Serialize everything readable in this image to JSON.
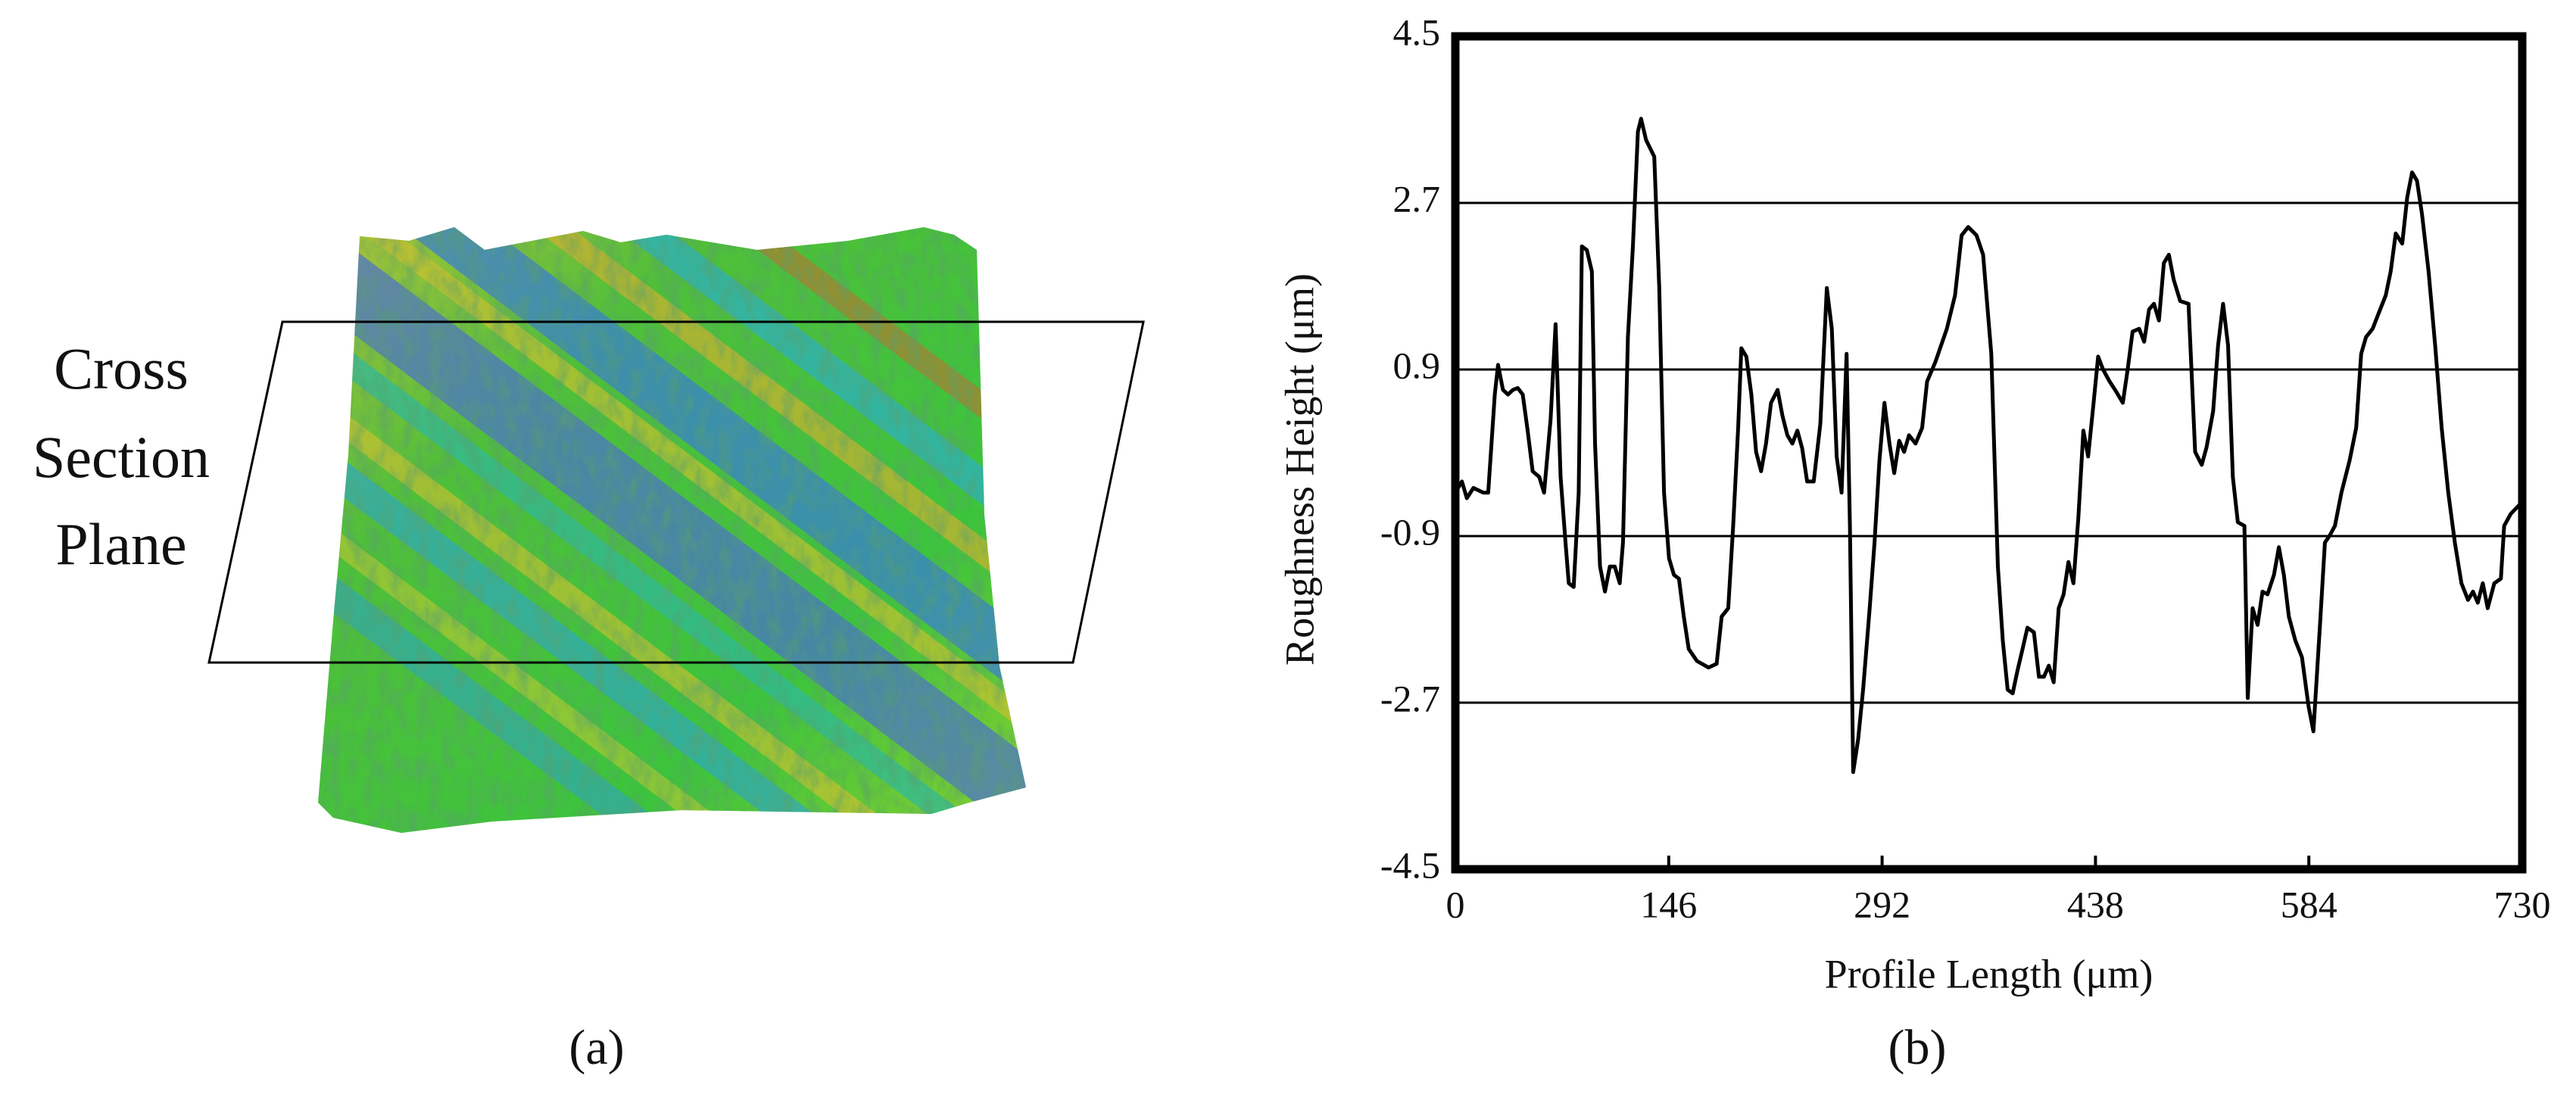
{
  "panel_a": {
    "plane_label": [
      "Cross",
      "Section",
      "Plane"
    ],
    "caption": "(a)"
  },
  "chart_data": {
    "type": "line",
    "caption": "(b)",
    "xlabel": "Profile Length (μm)",
    "ylabel": "Roughness Height (μm)",
    "xlim": [
      0,
      730
    ],
    "ylim": [
      -4.5,
      4.5
    ],
    "xticks": [
      0,
      146,
      292,
      438,
      584,
      730
    ],
    "yticks": [
      -4.5,
      -2.7,
      -0.9,
      0.9,
      2.7,
      4.5
    ],
    "grid": true,
    "color": "#000000",
    "x": [
      0,
      4.5,
      7.9,
      12.4,
      19.1,
      22.5,
      27.0,
      29.2,
      32.6,
      36.0,
      39.4,
      42.7,
      46.1,
      49.5,
      52.9,
      57.4,
      60.7,
      65.2,
      68.6,
      72.0,
      75.4,
      77.6,
      81.0,
      84.4,
      86.6,
      90.0,
      93.4,
      95.6,
      99.0,
      102.4,
      105.7,
      109.1,
      112.5,
      114.7,
      118.1,
      121.5,
      124.9,
      127.1,
      130.5,
      136.1,
      139.5,
      142.8,
      146.2,
      149.6,
      153.0,
      156.3,
      159.7,
      165.3,
      173.2,
      178.8,
      182.2,
      186.7,
      190.1,
      193.5,
      195.7,
      199.1,
      202.5,
      205.8,
      209.2,
      212.6,
      216.0,
      220.5,
      223.8,
      227.2,
      230.6,
      234.0,
      237.3,
      240.7,
      245.2,
      249.7,
      254.2,
      257.6,
      260.9,
      264.3,
      267.7,
      270.0,
      272.2,
      275.6,
      279.0,
      283.5,
      286.8,
      290.2,
      293.6,
      297.0,
      300.3,
      303.7,
      307.1,
      310.4,
      314.9,
      319.4,
      322.8,
      328.4,
      336.3,
      341.9,
      346.4,
      350.9,
      356.6,
      361.1,
      366.7,
      371.2,
      374.6,
      377.9,
      381.3,
      384.7,
      388.1,
      391.4,
      395.9,
      399.3,
      402.7,
      406.1,
      409.4,
      412.8,
      416.2,
      419.5,
      422.9,
      426.3,
      429.7,
      433.0,
      436.4,
      439.8,
      443.2,
      447.7,
      452.2,
      456.7,
      460.0,
      463.4,
      467.9,
      471.3,
      474.7,
      478.0,
      481.4,
      484.8,
      488.2,
      491.5,
      496.0,
      501.7,
      506.2,
      510.7,
      514.0,
      518.5,
      521.9,
      525.3,
      528.7,
      532.0,
      535.4,
      539.9,
      542.2,
      545.5,
      548.9,
      552.3,
      555.7,
      560.1,
      563.5,
      566.9,
      570.3,
      574.8,
      579.3,
      583.8,
      587.1,
      591.6,
      595.0,
      598.4,
      601.8,
      606.3,
      611.9,
      616.4,
      619.8,
      623.1,
      627.6,
      632.1,
      636.6,
      640.0,
      643.4,
      647.9,
      651.3,
      654.6,
      658.0,
      661.4,
      665.9,
      670.4,
      674.9,
      679.4,
      683.9,
      688.4,
      692.9,
      696.3,
      699.6,
      703.0,
      706.4,
      710.9,
      715.4,
      717.6,
      722.1,
      730
    ],
    "values": [
      -0.43,
      -0.31,
      -0.49,
      -0.38,
      -0.43,
      -0.43,
      0.63,
      0.95,
      0.68,
      0.63,
      0.68,
      0.7,
      0.63,
      0.24,
      -0.2,
      -0.26,
      -0.43,
      0.36,
      1.39,
      -0.26,
      -0.97,
      -1.41,
      -1.45,
      -0.43,
      2.23,
      2.19,
      1.96,
      0.1,
      -1.23,
      -1.5,
      -1.23,
      -1.23,
      -1.41,
      -0.97,
      1.25,
      2.23,
      3.47,
      3.61,
      3.38,
      3.2,
      1.78,
      -0.43,
      -1.14,
      -1.32,
      -1.36,
      -1.77,
      -2.12,
      -2.25,
      -2.32,
      -2.28,
      -1.77,
      -1.68,
      -0.79,
      0.27,
      1.13,
      1.04,
      0.63,
      0.01,
      -0.2,
      0.1,
      0.54,
      0.68,
      0.4,
      0.19,
      0.1,
      0.24,
      0.05,
      -0.31,
      -0.31,
      0.31,
      1.78,
      1.34,
      -0.04,
      -0.43,
      1.07,
      -0.79,
      -3.45,
      -3.1,
      -2.56,
      -1.68,
      -0.97,
      -0.08,
      0.54,
      0.1,
      -0.22,
      0.13,
      0.01,
      0.19,
      0.1,
      0.27,
      0.77,
      0.98,
      1.34,
      1.7,
      2.35,
      2.44,
      2.35,
      2.14,
      1.07,
      -1.23,
      -2.03,
      -2.56,
      -2.6,
      -2.35,
      -2.12,
      -1.89,
      -1.94,
      -2.42,
      -2.42,
      -2.3,
      -2.48,
      -1.68,
      -1.53,
      -1.18,
      -1.41,
      -0.7,
      0.24,
      -0.04,
      0.49,
      1.04,
      0.9,
      0.77,
      0.66,
      0.54,
      0.9,
      1.31,
      1.34,
      1.2,
      1.55,
      1.61,
      1.43,
      2.05,
      2.14,
      1.87,
      1.64,
      1.61,
      0.01,
      -0.13,
      0.06,
      0.45,
      1.16,
      1.61,
      1.16,
      -0.26,
      -0.75,
      -0.79,
      -2.65,
      -1.68,
      -1.86,
      -1.5,
      -1.53,
      -1.32,
      -1.02,
      -1.32,
      -1.77,
      -2.03,
      -2.21,
      -2.74,
      -3.01,
      -1.86,
      -0.97,
      -0.89,
      -0.79,
      -0.43,
      -0.08,
      0.27,
      1.07,
      1.25,
      1.34,
      1.52,
      1.7,
      1.96,
      2.37,
      2.26,
      2.76,
      3.03,
      2.94,
      2.58,
      1.96,
      1.16,
      0.27,
      -0.43,
      -0.97,
      -1.41,
      -1.59,
      -1.5,
      -1.62,
      -1.41,
      -1.68,
      -1.41,
      -1.36,
      -0.79,
      -0.66,
      -0.53
    ]
  }
}
